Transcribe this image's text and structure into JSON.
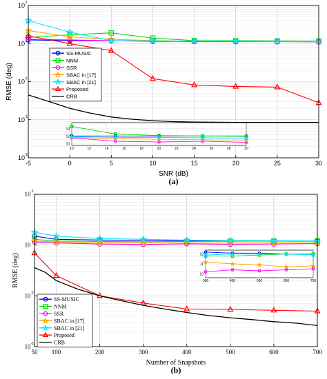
{
  "chart_data": [
    {
      "panel": "(a)",
      "type": "line",
      "xlabel": "SNR (dB)",
      "ylabel": "RMSE (deg)",
      "log_y": true,
      "xlim": [
        -5,
        30
      ],
      "ylim": [
        0.01,
        100
      ],
      "x_ticks": [
        "-5",
        "0",
        "5",
        "10",
        "15",
        "20",
        "25",
        "30"
      ],
      "y_ticks": [
        "10",
        "10",
        "10",
        "10",
        "10"
      ],
      "y_tick_exp": [
        "-2",
        "-1",
        "0",
        "1",
        "2"
      ],
      "grid": true,
      "legend": "upper-left",
      "x": [
        -5,
        0,
        5,
        10,
        15,
        20,
        25,
        30
      ],
      "series": [
        {
          "name": "SS-MUSIC",
          "color": "#0000ff",
          "marker": "circle",
          "values": [
            12.5,
            12.0,
            11.9,
            11.5,
            11.3,
            11.2,
            11.2,
            11.1
          ]
        },
        {
          "name": "NNM",
          "color": "#00dd00",
          "marker": "square",
          "values": [
            14.5,
            17.0,
            19.0,
            14.0,
            12.0,
            11.9,
            11.8,
            11.7
          ]
        },
        {
          "name": "SSR",
          "color": "#ff00ff",
          "marker": "circle",
          "values": [
            13.0,
            12.5,
            11.9,
            11.7,
            11.4,
            11.3,
            11.3,
            11.2
          ]
        },
        {
          "name": "SBAC in [17]",
          "color": "#ffa500",
          "marker": "star",
          "values": [
            22.0,
            15.0,
            13.0,
            12.0,
            11.6,
            11.4,
            11.3,
            11.2
          ]
        },
        {
          "name": "SBAC in [21]",
          "color": "#00e5ff",
          "marker": "star",
          "values": [
            40.0,
            20.0,
            12.0,
            11.8,
            11.6,
            11.5,
            11.3,
            11.2
          ]
        },
        {
          "name": "Proposed",
          "color": "#ff0000",
          "marker": "triangle",
          "values": [
            16.0,
            10.0,
            6.5,
            1.2,
            0.82,
            0.75,
            0.72,
            0.28
          ]
        },
        {
          "name": "CRB",
          "color": "#000000",
          "marker": "none",
          "x": [
            -5,
            -2.5,
            0,
            2.5,
            5,
            7.5,
            10,
            12.5,
            15,
            17.5,
            20,
            22.5,
            25,
            27.5,
            30
          ],
          "values": [
            0.45,
            0.3,
            0.2,
            0.148,
            0.118,
            0.103,
            0.094,
            0.089,
            0.087,
            0.086,
            0.085,
            0.085,
            0.085,
            0.085,
            0.085
          ]
        }
      ],
      "inset": {
        "x_ticks": [
          "10",
          "12",
          "14",
          "16",
          "18",
          "20",
          "22",
          "24",
          "26",
          "28",
          "30"
        ],
        "y_ticks": [
          "14",
          "12",
          "10"
        ],
        "xlim": [
          10,
          30
        ],
        "ylim": [
          9.5,
          15.5
        ],
        "series": [
          {
            "name": "SS-MUSIC",
            "x": [
              10,
              15,
              20,
              25,
              30
            ],
            "values": [
              12.0,
              12.0,
              12.0,
              12.0,
              12.0
            ]
          },
          {
            "name": "NNM",
            "x": [
              10,
              15,
              20,
              25,
              30
            ],
            "values": [
              14.5,
              12.5,
              12.1,
              12.0,
              11.9
            ]
          },
          {
            "name": "SSR",
            "x": [
              10,
              15,
              20,
              25,
              30
            ],
            "values": [
              11.5,
              10.6,
              10.4,
              10.6,
              10.3
            ]
          },
          {
            "name": "SBAC in [17]",
            "x": [
              10,
              15,
              20,
              25,
              30
            ],
            "values": [
              11.6,
              11.3,
              11.1,
              11.0,
              10.9
            ]
          },
          {
            "name": "SBAC in [21]",
            "x": [
              10,
              15,
              20,
              25,
              30
            ],
            "values": [
              11.8,
              11.6,
              11.6,
              11.5,
              11.4
            ]
          }
        ]
      }
    },
    {
      "panel": "(b)",
      "type": "line",
      "xlabel": "Number of Snapshots",
      "ylabel": "RMSE (deg)",
      "log_y": true,
      "xlim": [
        50,
        700
      ],
      "ylim": [
        0.1,
        100
      ],
      "x_ticks": [
        "50",
        "100",
        "200",
        "300",
        "400",
        "500",
        "600",
        "700"
      ],
      "y_ticks": [
        "10",
        "10",
        "10",
        "10"
      ],
      "y_tick_exp": [
        "-1",
        "0",
        "1",
        "2"
      ],
      "grid": true,
      "legend": "lower-left",
      "x": [
        50,
        100,
        200,
        300,
        400,
        500,
        600,
        700
      ],
      "series": [
        {
          "name": "SS-MUSIC",
          "color": "#0000ff",
          "marker": "circle",
          "values": [
            15.0,
            13.0,
            12.6,
            12.4,
            12.2,
            12.1,
            12.0,
            12.0
          ]
        },
        {
          "name": "NNM",
          "color": "#00dd00",
          "marker": "square",
          "values": [
            13.0,
            12.0,
            11.8,
            11.6,
            11.8,
            11.9,
            12.0,
            12.1
          ]
        },
        {
          "name": "SSR",
          "color": "#ff00ff",
          "marker": "circle",
          "values": [
            11.5,
            11.0,
            10.5,
            10.3,
            10.6,
            10.4,
            10.5,
            10.7
          ]
        },
        {
          "name": "SBAC in [17]",
          "color": "#ffa500",
          "marker": "star",
          "values": [
            12.0,
            11.5,
            11.3,
            11.2,
            11.0,
            11.0,
            11.1,
            11.0
          ]
        },
        {
          "name": "SBAC in [21]",
          "color": "#00e5ff",
          "marker": "star",
          "values": [
            18.0,
            15.0,
            13.5,
            13.0,
            12.5,
            12.3,
            12.2,
            12.1
          ]
        },
        {
          "name": "Proposed",
          "color": "#ff0000",
          "marker": "triangle",
          "values": [
            7.0,
            2.5,
            1.0,
            0.72,
            0.55,
            0.54,
            0.52,
            0.5
          ]
        },
        {
          "name": "CRB",
          "color": "#000000",
          "marker": "none",
          "x": [
            50,
            75,
            100,
            150,
            200,
            250,
            300,
            350,
            400,
            450,
            500,
            550,
            600,
            650,
            700
          ],
          "values": [
            3.6,
            2.9,
            2.0,
            1.35,
            1.0,
            0.8,
            0.65,
            0.55,
            0.47,
            0.41,
            0.37,
            0.34,
            0.31,
            0.29,
            0.26
          ]
        }
      ],
      "inset": {
        "x_ticks": [
          "300",
          "400",
          "500",
          "600",
          "700"
        ],
        "y_ticks": [
          "12",
          "11",
          "10"
        ],
        "xlim": [
          300,
          700
        ],
        "ylim": [
          9.6,
          12.4
        ],
        "series": [
          {
            "name": "SS-MUSIC",
            "x": [
              300,
              400,
              500,
              600,
              700
            ],
            "values": [
              12.2,
              12.1,
              12.1,
              12.0,
              12.0
            ]
          },
          {
            "name": "NNM",
            "x": [
              300,
              400,
              500,
              600,
              700
            ],
            "values": [
              11.8,
              11.8,
              11.9,
              12.0,
              12.0
            ]
          },
          {
            "name": "SSR",
            "x": [
              300,
              400,
              500,
              600,
              700
            ],
            "values": [
              10.2,
              10.4,
              10.3,
              10.4,
              10.5
            ]
          },
          {
            "name": "SBAC in [17]",
            "x": [
              300,
              400,
              500,
              600,
              700
            ],
            "values": [
              11.2,
              11.0,
              10.9,
              10.7,
              10.8
            ]
          },
          {
            "name": "SBAC in [21]",
            "x": [
              300,
              400,
              500,
              600,
              700
            ],
            "values": [
              11.9,
              12.0,
              12.0,
              12.0,
              11.9
            ]
          }
        ]
      }
    }
  ]
}
